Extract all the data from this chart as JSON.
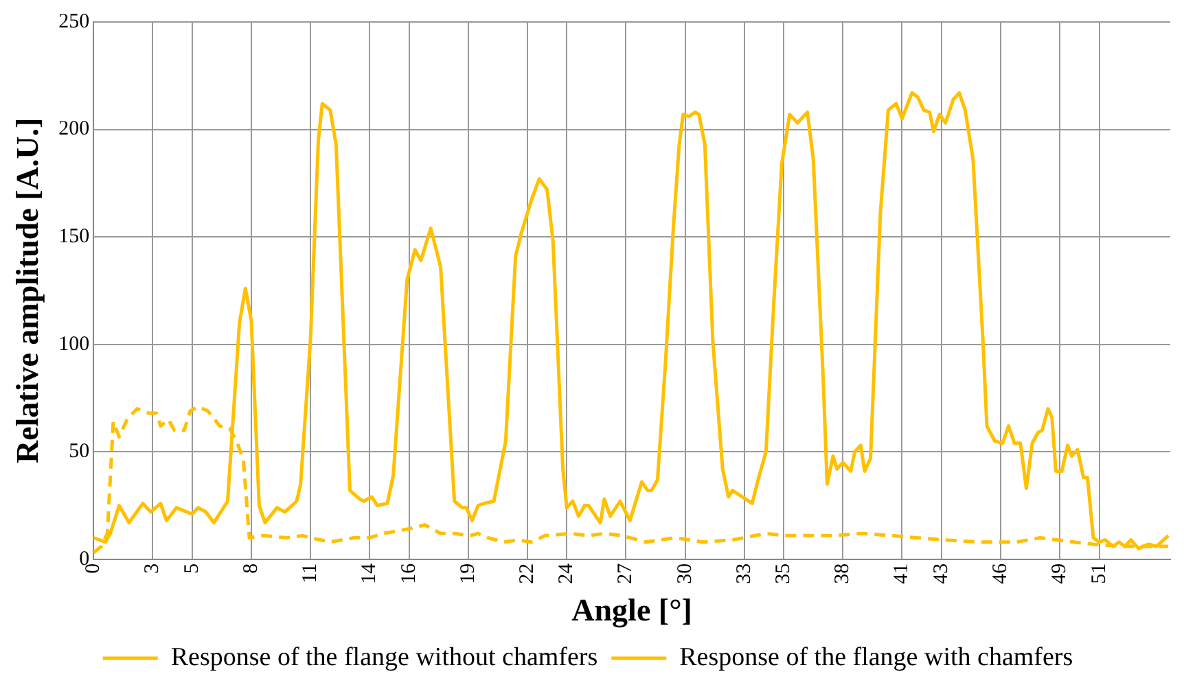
{
  "chart_data": {
    "type": "line",
    "xlabel": "Angle [°]",
    "ylabel": "Relative amplitude [A.U.]",
    "xlim": [
      0,
      54.6
    ],
    "xticks": [
      0,
      3,
      5,
      8,
      11,
      14,
      16,
      19,
      22,
      24,
      27,
      30,
      33,
      35,
      38,
      41,
      43,
      46,
      49,
      51
    ],
    "ylim": [
      0,
      250
    ],
    "yticks": [
      0,
      50,
      100,
      150,
      200,
      250
    ],
    "grid": true,
    "legend": "bottom",
    "marker": "none",
    "series": [
      {
        "name": "Response of the flange without chamfers",
        "color": "#ffc000",
        "line_style": "dashed",
        "x": [
          0,
          0.4,
          0.7,
          1.0,
          1.3,
          1.7,
          2.2,
          2.8,
          3.2,
          3.4,
          3.8,
          4.1,
          4.6,
          4.9,
          5.3,
          5.8,
          6.4,
          6.9,
          7.3,
          7.6,
          7.9,
          8.6,
          9.8,
          10.6,
          11.0,
          12.0,
          13.2,
          14.0,
          14.7,
          15.9,
          16.8,
          17.6,
          18.3,
          19.1,
          19.5,
          20.0,
          20.8,
          21.5,
          22.2,
          22.9,
          24.2,
          25.1,
          25.9,
          26.8,
          28.0,
          29.5,
          30.9,
          32.4,
          34.1,
          35.1,
          37.5,
          39.0,
          40.5,
          41.7,
          43.1,
          44.9,
          46.8,
          48.0,
          49.7,
          50.7,
          52.2,
          53.4,
          54.5
        ],
        "values": [
          3,
          6,
          12,
          64,
          57,
          65,
          70,
          68,
          68,
          62,
          65,
          60,
          60,
          69,
          71,
          69,
          62,
          61,
          54,
          46,
          10,
          11,
          10,
          11,
          10,
          8,
          10,
          10,
          12,
          14,
          16,
          12,
          12,
          11,
          12,
          10,
          8,
          9,
          8,
          11,
          12,
          11,
          12,
          11,
          8,
          10,
          8,
          9,
          12,
          11,
          11,
          12,
          11,
          10,
          9,
          8,
          8,
          10,
          8,
          7,
          6,
          6,
          6
        ]
      },
      {
        "name": "Response of the flange with chamfers",
        "color": "#ffc000",
        "line_style": "solid",
        "x": [
          0,
          0.6,
          0.85,
          1.3,
          1.8,
          2.5,
          2.9,
          3.4,
          3.7,
          4.2,
          5.0,
          5.3,
          5.7,
          6.1,
          6.8,
          7.4,
          7.7,
          8.0,
          8.4,
          8.7,
          9.3,
          9.7,
          10.3,
          10.5,
          11.0,
          11.4,
          11.6,
          12.0,
          12.3,
          13.0,
          13.5,
          13.7,
          14.1,
          14.4,
          14.9,
          15.2,
          15.9,
          16.3,
          16.6,
          17.1,
          17.6,
          18.3,
          18.7,
          18.9,
          19.2,
          19.5,
          19.8,
          20.3,
          20.9,
          21.4,
          21.7,
          22.2,
          22.6,
          23.0,
          23.3,
          23.8,
          24.0,
          24.3,
          24.6,
          24.9,
          25.1,
          25.7,
          25.9,
          26.2,
          26.7,
          27.2,
          27.8,
          28.1,
          28.3,
          28.6,
          29.0,
          29.4,
          29.7,
          29.9,
          30.2,
          30.5,
          30.7,
          31.0,
          31.4,
          31.9,
          32.2,
          32.4,
          32.9,
          33.4,
          33.7,
          34.1,
          34.5,
          34.9,
          35.3,
          35.7,
          36.2,
          36.5,
          37.0,
          37.2,
          37.5,
          37.7,
          38.0,
          38.4,
          38.6,
          38.9,
          39.1,
          39.4,
          39.9,
          40.3,
          40.7,
          41.0,
          41.5,
          41.8,
          42.1,
          42.4,
          42.6,
          42.9,
          43.2,
          43.6,
          43.9,
          44.2,
          44.6,
          45.1,
          45.3,
          45.7,
          46.1,
          46.4,
          46.7,
          47.0,
          47.3,
          47.6,
          47.9,
          48.1,
          48.4,
          48.6,
          48.8,
          49.1,
          49.4,
          49.6,
          49.9,
          50.2,
          50.4,
          50.7,
          51.0,
          51.3,
          51.7,
          52.0,
          52.3,
          52.6,
          53.0,
          53.5,
          53.9,
          54.5
        ],
        "values": [
          10,
          8,
          12,
          25,
          17,
          26,
          22,
          26,
          18,
          24,
          21,
          24,
          22,
          17,
          27,
          110,
          126,
          111,
          25,
          17,
          24,
          22,
          27,
          35,
          102,
          195,
          212,
          209,
          193,
          32,
          28,
          27,
          29,
          25,
          26,
          39,
          130,
          144,
          139,
          154,
          136,
          27,
          24,
          24,
          18,
          25,
          26,
          27,
          55,
          141,
          152,
          167,
          177,
          172,
          148,
          42,
          24,
          27,
          20,
          25,
          25,
          17,
          28,
          20,
          27,
          18,
          36,
          32,
          32,
          37,
          91,
          154,
          193,
          207,
          206,
          208,
          207,
          193,
          102,
          42,
          29,
          32,
          29,
          26,
          37,
          50,
          120,
          184,
          207,
          203,
          208,
          186,
          84,
          35,
          48,
          42,
          45,
          41,
          50,
          53,
          41,
          47,
          161,
          209,
          212,
          205,
          217,
          215,
          209,
          208,
          199,
          207,
          203,
          214,
          217,
          209,
          186,
          102,
          62,
          55,
          54,
          62,
          54,
          54,
          33,
          54,
          59,
          60,
          70,
          66,
          41,
          41,
          53,
          48,
          51,
          38,
          38,
          10,
          8,
          9,
          6,
          8,
          6,
          9,
          5,
          7,
          6,
          11
        ]
      }
    ]
  }
}
